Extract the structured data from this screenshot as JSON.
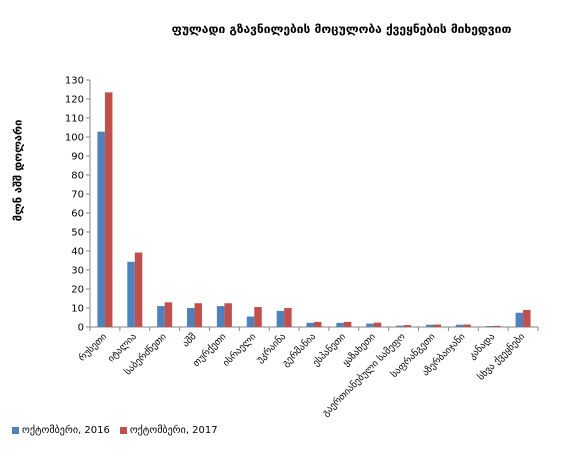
{
  "chart_data": {
    "type": "bar",
    "title": "ფულადი გზავნილების მოცულობა ქვეყნების მიხედვით",
    "ylabel": "მლნ აშშ დოლარი",
    "xlabel": "",
    "ylim": [
      0,
      130
    ],
    "yticks": [
      0,
      10,
      20,
      30,
      40,
      50,
      60,
      70,
      80,
      90,
      100,
      110,
      120,
      130
    ],
    "grid": false,
    "legend_position": "bottom-left",
    "categories": [
      "რუსეთი",
      "იტალია",
      "საბერძნეთი",
      "აშშ",
      "თურქეთი",
      "ისრაელი",
      "უკრაინა",
      "გერმანია",
      "ესპანეთი",
      "ყაზახეთი",
      "გაერთიანებული სამეფო",
      "საფრანგეთი",
      "აზერბაიჯანი",
      "კანადა",
      "სხვა ქვეყნები"
    ],
    "series": [
      {
        "name": "ოქტომბერი, 2016",
        "color": "#4F81BD",
        "values": [
          102.8,
          34.3,
          11.0,
          10.0,
          11.0,
          5.5,
          8.5,
          2.2,
          2.2,
          1.8,
          0.7,
          1.2,
          1.2,
          0.5,
          7.5
        ]
      },
      {
        "name": "ოქტომბერი, 2017",
        "color": "#C0504D",
        "values": [
          123.5,
          39.2,
          13.0,
          12.5,
          12.5,
          10.5,
          10.0,
          2.7,
          2.7,
          2.3,
          1.0,
          1.3,
          1.3,
          0.6,
          9.0
        ]
      }
    ]
  }
}
